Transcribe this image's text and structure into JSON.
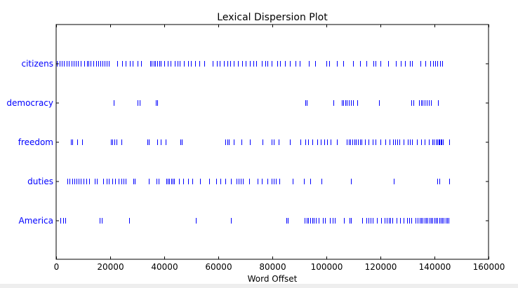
{
  "chart_data": {
    "type": "scatter",
    "title": "Lexical Dispersion Plot",
    "xlabel": "Word Offset",
    "ylabel": "",
    "xlim": [
      0,
      160000
    ],
    "x_ticks": [
      0,
      20000,
      40000,
      60000,
      80000,
      100000,
      120000,
      140000,
      160000
    ],
    "x_tick_labels": [
      "0",
      "20000",
      "40000",
      "60000",
      "80000",
      "100000",
      "120000",
      "140000",
      "160000"
    ],
    "categories": [
      "citizens",
      "democracy",
      "freedom",
      "duties",
      "America"
    ],
    "marker": "|",
    "colors": {
      "marker": "#0000ff",
      "label": "#0000ff",
      "axis": "#000000",
      "background": "#ffffff"
    },
    "series": [
      {
        "name": "citizens",
        "offsets": [
          300,
          1200,
          2000,
          2900,
          3800,
          4700,
          5600,
          6400,
          7200,
          8100,
          9000,
          10500,
          11300,
          12000,
          12800,
          13700,
          14700,
          15500,
          16300,
          17200,
          18000,
          18800,
          19600,
          22600,
          24500,
          25800,
          27300,
          28300,
          30000,
          31500,
          34900,
          35400,
          36000,
          36700,
          37400,
          38100,
          38800,
          40000,
          41300,
          42400,
          43800,
          45000,
          45800,
          47300,
          48800,
          49800,
          51500,
          53000,
          54700,
          58000,
          59500,
          60500,
          62000,
          63300,
          64400,
          65600,
          67400,
          68900,
          70200,
          71800,
          72900,
          74000,
          76000,
          77300,
          78100,
          79800,
          81900,
          82800,
          84800,
          86500,
          88500,
          90000,
          93500,
          95800,
          100000,
          101000,
          103800,
          106200,
          109800,
          112500,
          114900,
          117300,
          118300,
          120000,
          122800,
          125800,
          127500,
          129000,
          131000,
          131800,
          134800,
          136500,
          138500,
          139400,
          140200,
          141100,
          142000,
          142800
        ]
      },
      {
        "name": "democracy",
        "offsets": [
          21200,
          30100,
          30900,
          37000,
          37500,
          92300,
          92700,
          102700,
          105700,
          106300,
          106900,
          107600,
          108300,
          109000,
          109800,
          111300,
          119600,
          131400,
          132200,
          134300,
          135000,
          135700,
          136400,
          137100,
          137800,
          138600,
          141300
        ]
      },
      {
        "name": "freedom",
        "offsets": [
          5500,
          6100,
          7800,
          9700,
          20200,
          20900,
          21600,
          22300,
          24200,
          33700,
          34300,
          37300,
          38800,
          40500,
          45900,
          46500,
          62700,
          63300,
          63900,
          65600,
          68600,
          71600,
          76300,
          79800,
          80500,
          82400,
          86600,
          90500,
          92100,
          93300,
          94800,
          96500,
          97900,
          99100,
          100200,
          101500,
          103800,
          107500,
          108200,
          108900,
          109600,
          110300,
          111000,
          111700,
          112400,
          113100,
          114300,
          115500,
          117100,
          118100,
          119900,
          121800,
          123400,
          124600,
          125400,
          126200,
          127000,
          128600,
          130200,
          131000,
          131800,
          133500,
          135000,
          136400,
          137900,
          139200,
          139800,
          140400,
          141000,
          141500,
          141900,
          142300,
          142700,
          143100,
          145500
        ]
      },
      {
        "name": "duties",
        "offsets": [
          4100,
          5000,
          5900,
          6800,
          7600,
          8400,
          9200,
          10000,
          11200,
          12100,
          14300,
          15000,
          17300,
          18700,
          19600,
          20900,
          21800,
          23200,
          24200,
          25000,
          25800,
          28500,
          29100,
          34300,
          37100,
          37900,
          40700,
          41300,
          41900,
          42500,
          43100,
          43700,
          45500,
          47100,
          48800,
          50400,
          53300,
          56500,
          59300,
          60900,
          62500,
          64600,
          66700,
          67500,
          68300,
          69100,
          71500,
          74600,
          76200,
          78300,
          79800,
          80500,
          81200,
          82700,
          87600,
          91800,
          94000,
          98200,
          109100,
          125000,
          141100,
          141900,
          145400
        ]
      },
      {
        "name": "America",
        "offsets": [
          1600,
          2500,
          3400,
          16100,
          16800,
          26900,
          51600,
          64600,
          85100,
          85600,
          91900,
          92600,
          93300,
          94000,
          94700,
          95400,
          96200,
          97200,
          98600,
          99600,
          101400,
          102300,
          103200,
          106600,
          108500,
          109200,
          113300,
          114800,
          115600,
          116400,
          117200,
          118800,
          120300,
          121600,
          122400,
          123000,
          123600,
          124300,
          125900,
          127200,
          128500,
          129800,
          130600,
          131500,
          133100,
          133800,
          134500,
          135100,
          135700,
          136300,
          136900,
          137500,
          138100,
          138700,
          139300,
          139900,
          140500,
          141100,
          141700,
          142300,
          142900,
          143500,
          144100,
          144700,
          145300
        ]
      }
    ]
  }
}
